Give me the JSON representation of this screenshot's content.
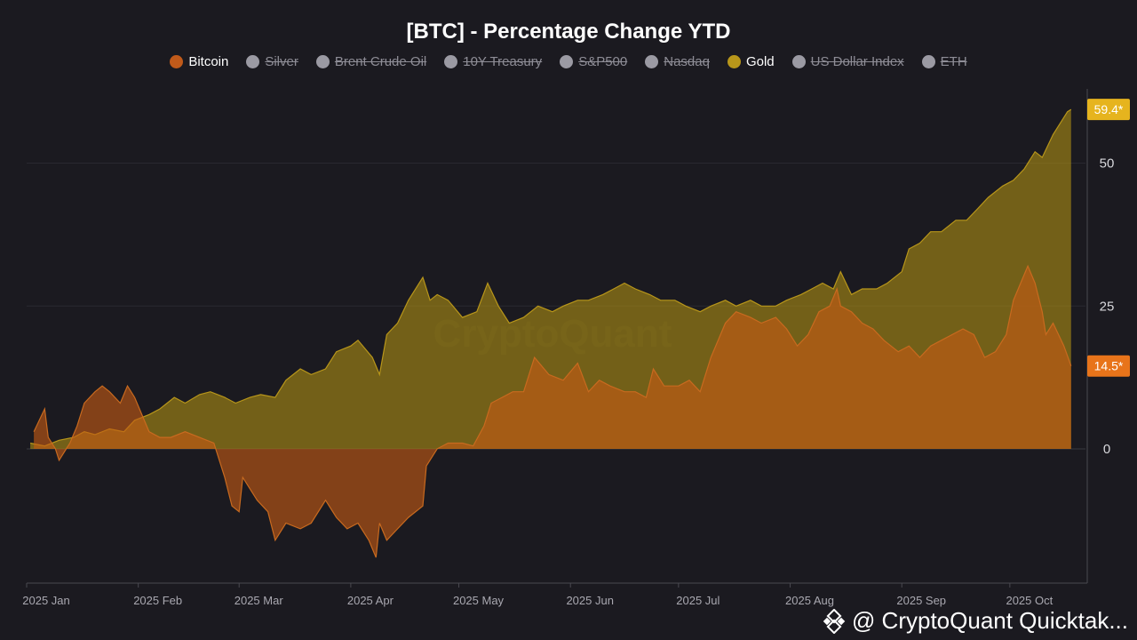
{
  "title": "[BTC] - Percentage Change YTD",
  "legend": [
    {
      "label": "Bitcoin",
      "color": "#c05a1a",
      "active": true
    },
    {
      "label": "Silver",
      "color": "#9b9aa3",
      "active": false
    },
    {
      "label": "Brent Crude Oil",
      "color": "#9b9aa3",
      "active": false
    },
    {
      "label": "10Y Treasury",
      "color": "#9b9aa3",
      "active": false
    },
    {
      "label": "S&P500",
      "color": "#9b9aa3",
      "active": false
    },
    {
      "label": "Nasdaq",
      "color": "#9b9aa3",
      "active": false
    },
    {
      "label": "Gold",
      "color": "#b8961a",
      "active": true
    },
    {
      "label": "US Dollar Index",
      "color": "#9b9aa3",
      "active": false
    },
    {
      "label": "ETH",
      "color": "#9b9aa3",
      "active": false
    }
  ],
  "watermark": "CryptoQuant",
  "attribution": "@ CryptoQuant Quicktak...",
  "attribution_sub": "",
  "chart_data": {
    "type": "area",
    "title": "[BTC] - Percentage Change YTD",
    "x_tick_labels": [
      "2025 Jan",
      "2025 Feb",
      "2025 Mar",
      "2025 Apr",
      "2025 May",
      "2025 Jun",
      "2025 Jul",
      "2025 Aug",
      "2025 Sep",
      "2025 Oct"
    ],
    "y_ticks": [
      0,
      25,
      50
    ],
    "ylim": [
      -23.5,
      63
    ],
    "xlim": [
      "2025-01-01",
      "2025-10-22"
    ],
    "grid": true,
    "legend_position": "top",
    "series": [
      {
        "name": "Bitcoin",
        "color": "#c05a1a",
        "last_value_label": "14.5*",
        "points": [
          [
            "2025-01-03",
            3
          ],
          [
            "2025-01-06",
            7
          ],
          [
            "2025-01-07",
            2
          ],
          [
            "2025-01-09",
            0
          ],
          [
            "2025-01-10",
            -2
          ],
          [
            "2025-01-13",
            1
          ],
          [
            "2025-01-15",
            4
          ],
          [
            "2025-01-17",
            8
          ],
          [
            "2025-01-20",
            10
          ],
          [
            "2025-01-22",
            11
          ],
          [
            "2025-01-24",
            10
          ],
          [
            "2025-01-27",
            8
          ],
          [
            "2025-01-29",
            11
          ],
          [
            "2025-01-31",
            9
          ],
          [
            "2025-02-02",
            6
          ],
          [
            "2025-02-04",
            3
          ],
          [
            "2025-02-07",
            2
          ],
          [
            "2025-02-10",
            2
          ],
          [
            "2025-02-14",
            3
          ],
          [
            "2025-02-18",
            2
          ],
          [
            "2025-02-22",
            1
          ],
          [
            "2025-02-25",
            -5
          ],
          [
            "2025-02-27",
            -10
          ],
          [
            "2025-03-01",
            -11
          ],
          [
            "2025-03-02",
            -5
          ],
          [
            "2025-03-04",
            -7
          ],
          [
            "2025-03-06",
            -9
          ],
          [
            "2025-03-09",
            -11
          ],
          [
            "2025-03-11",
            -16
          ],
          [
            "2025-03-14",
            -13
          ],
          [
            "2025-03-18",
            -14
          ],
          [
            "2025-03-21",
            -13
          ],
          [
            "2025-03-25",
            -9
          ],
          [
            "2025-03-28",
            -12
          ],
          [
            "2025-03-31",
            -14
          ],
          [
            "2025-04-03",
            -13
          ],
          [
            "2025-04-06",
            -16
          ],
          [
            "2025-04-08",
            -19
          ],
          [
            "2025-04-09",
            -13
          ],
          [
            "2025-04-11",
            -16
          ],
          [
            "2025-04-14",
            -14
          ],
          [
            "2025-04-17",
            -12
          ],
          [
            "2025-04-21",
            -10
          ],
          [
            "2025-04-22",
            -3
          ],
          [
            "2025-04-25",
            0
          ],
          [
            "2025-04-28",
            1
          ],
          [
            "2025-05-02",
            1
          ],
          [
            "2025-05-05",
            0.5
          ],
          [
            "2025-05-08",
            4
          ],
          [
            "2025-05-10",
            8
          ],
          [
            "2025-05-13",
            9
          ],
          [
            "2025-05-16",
            10
          ],
          [
            "2025-05-19",
            10
          ],
          [
            "2025-05-22",
            16
          ],
          [
            "2025-05-26",
            13
          ],
          [
            "2025-05-30",
            12
          ],
          [
            "2025-06-03",
            15
          ],
          [
            "2025-06-06",
            10
          ],
          [
            "2025-06-09",
            12
          ],
          [
            "2025-06-12",
            11
          ],
          [
            "2025-06-16",
            10
          ],
          [
            "2025-06-19",
            10
          ],
          [
            "2025-06-22",
            9
          ],
          [
            "2025-06-24",
            14
          ],
          [
            "2025-06-27",
            11
          ],
          [
            "2025-07-01",
            11
          ],
          [
            "2025-07-04",
            12
          ],
          [
            "2025-07-07",
            10
          ],
          [
            "2025-07-10",
            16
          ],
          [
            "2025-07-14",
            22
          ],
          [
            "2025-07-17",
            24
          ],
          [
            "2025-07-21",
            23
          ],
          [
            "2025-07-24",
            22
          ],
          [
            "2025-07-28",
            23
          ],
          [
            "2025-07-31",
            21
          ],
          [
            "2025-08-03",
            18
          ],
          [
            "2025-08-06",
            20
          ],
          [
            "2025-08-09",
            24
          ],
          [
            "2025-08-12",
            25
          ],
          [
            "2025-08-14",
            28
          ],
          [
            "2025-08-15",
            25
          ],
          [
            "2025-08-18",
            24
          ],
          [
            "2025-08-21",
            22
          ],
          [
            "2025-08-24",
            21
          ],
          [
            "2025-08-27",
            19
          ],
          [
            "2025-08-31",
            17
          ],
          [
            "2025-09-03",
            18
          ],
          [
            "2025-09-06",
            16
          ],
          [
            "2025-09-09",
            18
          ],
          [
            "2025-09-12",
            19
          ],
          [
            "2025-09-15",
            20
          ],
          [
            "2025-09-18",
            21
          ],
          [
            "2025-09-21",
            20
          ],
          [
            "2025-09-24",
            16
          ],
          [
            "2025-09-27",
            17
          ],
          [
            "2025-09-30",
            20
          ],
          [
            "2025-10-02",
            26
          ],
          [
            "2025-10-04",
            29
          ],
          [
            "2025-10-06",
            32
          ],
          [
            "2025-10-08",
            29
          ],
          [
            "2025-10-10",
            24
          ],
          [
            "2025-10-11",
            20
          ],
          [
            "2025-10-13",
            22
          ],
          [
            "2025-10-16",
            18
          ],
          [
            "2025-10-18",
            14.5
          ]
        ]
      },
      {
        "name": "Gold",
        "color": "#b8961a",
        "last_value_label": "59.4*",
        "points": [
          [
            "2025-01-02",
            1
          ],
          [
            "2025-01-06",
            0.5
          ],
          [
            "2025-01-10",
            1.5
          ],
          [
            "2025-01-14",
            2
          ],
          [
            "2025-01-17",
            3
          ],
          [
            "2025-01-20",
            2.5
          ],
          [
            "2025-01-24",
            3.5
          ],
          [
            "2025-01-28",
            3
          ],
          [
            "2025-01-31",
            5
          ],
          [
            "2025-02-04",
            6
          ],
          [
            "2025-02-07",
            7
          ],
          [
            "2025-02-11",
            9
          ],
          [
            "2025-02-14",
            8
          ],
          [
            "2025-02-18",
            9.5
          ],
          [
            "2025-02-21",
            10
          ],
          [
            "2025-02-25",
            9
          ],
          [
            "2025-02-28",
            8
          ],
          [
            "2025-03-04",
            9
          ],
          [
            "2025-03-07",
            9.5
          ],
          [
            "2025-03-11",
            9
          ],
          [
            "2025-03-14",
            12
          ],
          [
            "2025-03-18",
            14
          ],
          [
            "2025-03-21",
            13
          ],
          [
            "2025-03-25",
            14
          ],
          [
            "2025-03-28",
            17
          ],
          [
            "2025-04-01",
            18
          ],
          [
            "2025-04-03",
            19
          ],
          [
            "2025-04-07",
            16
          ],
          [
            "2025-04-09",
            13
          ],
          [
            "2025-04-11",
            20
          ],
          [
            "2025-04-14",
            22
          ],
          [
            "2025-04-17",
            26
          ],
          [
            "2025-04-21",
            30
          ],
          [
            "2025-04-23",
            26
          ],
          [
            "2025-04-25",
            27
          ],
          [
            "2025-04-28",
            26
          ],
          [
            "2025-05-02",
            23
          ],
          [
            "2025-05-06",
            24
          ],
          [
            "2025-05-09",
            29
          ],
          [
            "2025-05-12",
            25
          ],
          [
            "2025-05-15",
            22
          ],
          [
            "2025-05-19",
            23
          ],
          [
            "2025-05-23",
            25
          ],
          [
            "2025-05-27",
            24
          ],
          [
            "2025-05-30",
            25
          ],
          [
            "2025-06-03",
            26
          ],
          [
            "2025-06-06",
            26
          ],
          [
            "2025-06-10",
            27
          ],
          [
            "2025-06-13",
            28
          ],
          [
            "2025-06-16",
            29
          ],
          [
            "2025-06-19",
            28
          ],
          [
            "2025-06-23",
            27
          ],
          [
            "2025-06-26",
            26
          ],
          [
            "2025-06-30",
            26
          ],
          [
            "2025-07-03",
            25
          ],
          [
            "2025-07-07",
            24
          ],
          [
            "2025-07-10",
            25
          ],
          [
            "2025-07-14",
            26
          ],
          [
            "2025-07-17",
            25
          ],
          [
            "2025-07-21",
            26
          ],
          [
            "2025-07-24",
            25
          ],
          [
            "2025-07-28",
            25
          ],
          [
            "2025-07-31",
            26
          ],
          [
            "2025-08-04",
            27
          ],
          [
            "2025-08-07",
            28
          ],
          [
            "2025-08-10",
            29
          ],
          [
            "2025-08-13",
            28
          ],
          [
            "2025-08-15",
            31
          ],
          [
            "2025-08-18",
            27
          ],
          [
            "2025-08-21",
            28
          ],
          [
            "2025-08-25",
            28
          ],
          [
            "2025-08-28",
            29
          ],
          [
            "2025-09-01",
            31
          ],
          [
            "2025-09-03",
            35
          ],
          [
            "2025-09-06",
            36
          ],
          [
            "2025-09-09",
            38
          ],
          [
            "2025-09-12",
            38
          ],
          [
            "2025-09-16",
            40
          ],
          [
            "2025-09-19",
            40
          ],
          [
            "2025-09-22",
            42
          ],
          [
            "2025-09-25",
            44
          ],
          [
            "2025-09-29",
            46
          ],
          [
            "2025-10-02",
            47
          ],
          [
            "2025-10-05",
            49
          ],
          [
            "2025-10-08",
            52
          ],
          [
            "2025-10-10",
            51
          ],
          [
            "2025-10-13",
            55
          ],
          [
            "2025-10-15",
            57
          ],
          [
            "2025-10-17",
            59
          ],
          [
            "2025-10-18",
            59.4
          ]
        ]
      }
    ]
  }
}
